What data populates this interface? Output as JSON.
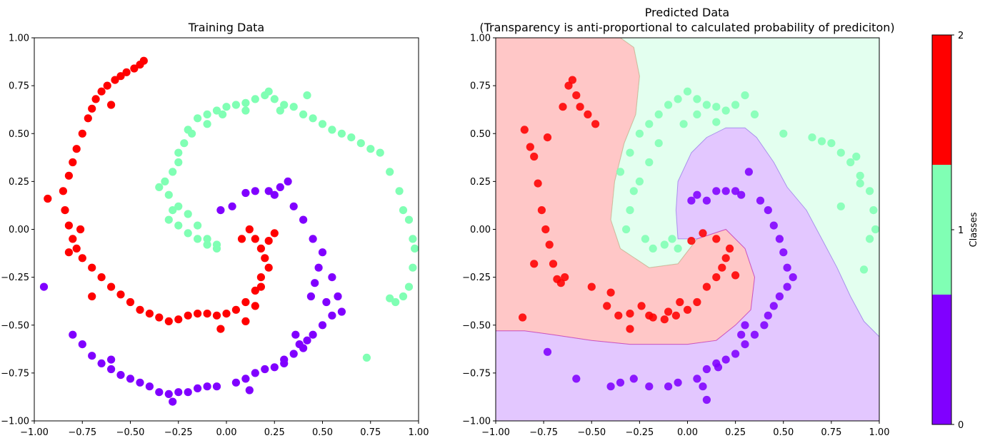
{
  "figure": {
    "left_title": "Training Data",
    "right_title_line1": "Predicted Data",
    "right_title_line2": "(Transparency is anti-proportional to calculated probability of prediciton)",
    "colorbar_label": "Classes",
    "colorbar_ticks": [
      "0",
      "1",
      "2"
    ]
  },
  "colors": {
    "class0": "#8000ff",
    "class1": "#80ffb4",
    "class2": "#ff0000"
  },
  "chart_data": [
    {
      "type": "scatter",
      "title": "Training Data",
      "xlabel": "",
      "ylabel": "",
      "xlim": [
        -1.0,
        1.0
      ],
      "ylim": [
        -1.0,
        1.0
      ],
      "xticks": [
        "−1.00",
        "−0.75",
        "−0.50",
        "−0.25",
        "0.00",
        "0.25",
        "0.50",
        "0.75",
        "1.00"
      ],
      "yticks": [
        "−1.00",
        "−0.75",
        "−0.50",
        "−0.25",
        "0.00",
        "0.25",
        "0.50",
        "0.75",
        "1.00"
      ],
      "grid": false,
      "series": [
        {
          "class": 0,
          "x": [
            0.32,
            0.28,
            0.22,
            0.15,
            0.1,
            0.03,
            -0.03,
            0.25,
            0.35,
            0.4,
            0.45,
            0.5,
            0.55,
            0.58,
            0.6,
            0.55,
            0.5,
            0.45,
            0.42,
            0.4,
            0.35,
            0.3,
            0.25,
            0.2,
            0.15,
            0.1,
            0.05,
            -0.05,
            -0.1,
            -0.15,
            -0.2,
            -0.25,
            -0.3,
            -0.35,
            -0.4,
            -0.45,
            -0.5,
            -0.55,
            -0.6,
            -0.65,
            -0.7,
            -0.75,
            -0.8,
            -0.95,
            0.48,
            0.44,
            0.38,
            0.3,
            0.12,
            -0.28,
            -0.6,
            0.52,
            0.46,
            0.36
          ],
          "y": [
            0.25,
            0.22,
            0.2,
            0.2,
            0.19,
            0.12,
            0.1,
            0.18,
            0.12,
            0.05,
            -0.05,
            -0.12,
            -0.25,
            -0.35,
            -0.43,
            -0.45,
            -0.5,
            -0.55,
            -0.58,
            -0.62,
            -0.65,
            -0.68,
            -0.72,
            -0.73,
            -0.75,
            -0.78,
            -0.8,
            -0.82,
            -0.82,
            -0.83,
            -0.85,
            -0.85,
            -0.86,
            -0.85,
            -0.82,
            -0.8,
            -0.78,
            -0.76,
            -0.73,
            -0.7,
            -0.66,
            -0.6,
            -0.55,
            -0.3,
            -0.2,
            -0.35,
            -0.6,
            -0.7,
            -0.84,
            -0.9,
            -0.68,
            -0.38,
            -0.28,
            -0.55
          ]
        },
        {
          "class": 1,
          "x": [
            -0.35,
            -0.3,
            -0.25,
            -0.2,
            -0.15,
            -0.1,
            -0.05,
            -0.32,
            -0.28,
            -0.25,
            -0.22,
            -0.18,
            -0.28,
            -0.3,
            -0.25,
            -0.2,
            -0.15,
            -0.1,
            -0.05,
            -0.25,
            -0.2,
            -0.15,
            -0.1,
            -0.05,
            0.0,
            0.05,
            0.1,
            0.15,
            0.2,
            0.25,
            0.3,
            0.35,
            0.4,
            0.45,
            0.5,
            0.55,
            0.6,
            0.65,
            0.7,
            0.75,
            0.8,
            0.85,
            0.9,
            0.92,
            0.95,
            0.97,
            0.98,
            0.97,
            0.95,
            0.92,
            0.88,
            0.85,
            0.73,
            -0.1,
            -0.02,
            0.1,
            0.22,
            0.28,
            0.42
          ],
          "y": [
            0.22,
            0.18,
            0.12,
            0.08,
            0.02,
            -0.05,
            -0.08,
            0.25,
            0.3,
            0.4,
            0.45,
            0.5,
            0.1,
            0.05,
            0.02,
            -0.02,
            -0.05,
            -0.08,
            -0.1,
            0.35,
            0.52,
            0.58,
            0.6,
            0.62,
            0.64,
            0.65,
            0.66,
            0.68,
            0.7,
            0.68,
            0.65,
            0.64,
            0.6,
            0.58,
            0.55,
            0.52,
            0.5,
            0.48,
            0.45,
            0.42,
            0.4,
            0.3,
            0.2,
            0.1,
            0.05,
            -0.05,
            -0.1,
            -0.2,
            -0.3,
            -0.35,
            -0.38,
            -0.36,
            -0.67,
            0.55,
            0.6,
            0.62,
            0.72,
            0.62,
            0.7
          ]
        },
        {
          "class": 2,
          "x": [
            0.12,
            0.15,
            0.18,
            0.2,
            0.22,
            0.18,
            0.15,
            0.1,
            0.05,
            0.0,
            -0.05,
            -0.1,
            -0.15,
            -0.2,
            -0.25,
            -0.3,
            -0.35,
            -0.4,
            -0.45,
            -0.5,
            -0.55,
            -0.6,
            -0.65,
            -0.7,
            -0.75,
            -0.78,
            -0.8,
            -0.82,
            -0.84,
            -0.85,
            -0.82,
            -0.8,
            -0.78,
            -0.75,
            -0.72,
            -0.7,
            -0.68,
            -0.65,
            -0.62,
            -0.58,
            -0.55,
            -0.52,
            -0.48,
            -0.45,
            -0.43,
            0.25,
            0.22,
            0.18,
            0.15,
            0.1,
            -0.03,
            -0.7,
            -0.76,
            -0.93,
            0.08,
            -0.6,
            -0.82
          ],
          "y": [
            0.0,
            -0.05,
            -0.1,
            -0.15,
            -0.2,
            -0.25,
            -0.32,
            -0.38,
            -0.42,
            -0.44,
            -0.45,
            -0.44,
            -0.44,
            -0.45,
            -0.47,
            -0.48,
            -0.46,
            -0.44,
            -0.42,
            -0.38,
            -0.34,
            -0.3,
            -0.25,
            -0.2,
            -0.15,
            -0.1,
            -0.05,
            0.02,
            0.1,
            0.2,
            0.28,
            0.35,
            0.42,
            0.5,
            0.58,
            0.63,
            0.68,
            0.72,
            0.75,
            0.78,
            0.8,
            0.82,
            0.84,
            0.86,
            0.88,
            -0.02,
            -0.06,
            -0.3,
            -0.4,
            -0.48,
            -0.52,
            -0.35,
            0.0,
            0.16,
            -0.05,
            0.65,
            -0.12
          ]
        }
      ]
    },
    {
      "type": "scatter",
      "title": "Predicted Data\n(Transparency is anti-proportional to calculated probability of prediciton)",
      "xlabel": "",
      "ylabel": "",
      "xlim": [
        -1.0,
        1.0
      ],
      "ylim": [
        -1.0,
        1.0
      ],
      "xticks": [
        "−1.00",
        "−0.75",
        "−0.50",
        "−0.25",
        "0.00",
        "0.25",
        "0.50",
        "0.75",
        "1.00"
      ],
      "yticks": [
        "−1.00",
        "−0.75",
        "−0.50",
        "−0.25",
        "0.00",
        "0.25",
        "0.50",
        "0.75",
        "1.00"
      ],
      "grid": false,
      "background_regions": [
        {
          "class": 2,
          "polygon": [
            [
              -1.0,
              1.0
            ],
            [
              -0.35,
              1.0
            ],
            [
              -0.28,
              0.95
            ],
            [
              -0.25,
              0.8
            ],
            [
              -0.27,
              0.6
            ],
            [
              -0.33,
              0.45
            ],
            [
              -0.38,
              0.25
            ],
            [
              -0.4,
              0.05
            ],
            [
              -0.35,
              -0.1
            ],
            [
              -0.2,
              -0.2
            ],
            [
              -0.05,
              -0.18
            ],
            [
              0.05,
              -0.05
            ],
            [
              0.2,
              0.0
            ],
            [
              0.3,
              -0.1
            ],
            [
              0.35,
              -0.25
            ],
            [
              0.33,
              -0.42
            ],
            [
              0.25,
              -0.5
            ],
            [
              0.15,
              -0.58
            ],
            [
              0.0,
              -0.6
            ],
            [
              -0.15,
              -0.6
            ],
            [
              -0.3,
              -0.6
            ],
            [
              -0.5,
              -0.58
            ],
            [
              -0.7,
              -0.55
            ],
            [
              -0.85,
              -0.53
            ],
            [
              -1.0,
              -0.53
            ]
          ]
        },
        {
          "class": 1,
          "polygon": [
            [
              -0.35,
              1.0
            ],
            [
              1.0,
              1.0
            ],
            [
              1.0,
              -0.56
            ],
            [
              0.92,
              -0.48
            ],
            [
              0.85,
              -0.35
            ],
            [
              0.78,
              -0.2
            ],
            [
              0.7,
              -0.05
            ],
            [
              0.62,
              0.1
            ],
            [
              0.52,
              0.22
            ],
            [
              0.45,
              0.35
            ],
            [
              0.36,
              0.48
            ],
            [
              0.3,
              0.53
            ],
            [
              0.2,
              0.53
            ],
            [
              0.1,
              0.48
            ],
            [
              0.02,
              0.4
            ],
            [
              -0.05,
              0.25
            ],
            [
              -0.06,
              0.1
            ],
            [
              -0.05,
              -0.05
            ],
            [
              0.05,
              -0.05
            ],
            [
              -0.05,
              -0.18
            ],
            [
              -0.2,
              -0.2
            ],
            [
              -0.35,
              -0.1
            ],
            [
              -0.4,
              0.05
            ],
            [
              -0.38,
              0.25
            ],
            [
              -0.33,
              0.45
            ],
            [
              -0.27,
              0.6
            ],
            [
              -0.25,
              0.8
            ],
            [
              -0.28,
              0.95
            ]
          ]
        },
        {
          "class": 0,
          "polygon": [
            [
              -1.0,
              -0.53
            ],
            [
              -0.85,
              -0.53
            ],
            [
              -0.7,
              -0.55
            ],
            [
              -0.5,
              -0.58
            ],
            [
              -0.3,
              -0.6
            ],
            [
              -0.15,
              -0.6
            ],
            [
              0.0,
              -0.6
            ],
            [
              0.15,
              -0.58
            ],
            [
              0.25,
              -0.5
            ],
            [
              0.33,
              -0.42
            ],
            [
              0.35,
              -0.25
            ],
            [
              0.3,
              -0.1
            ],
            [
              0.2,
              0.0
            ],
            [
              0.05,
              -0.05
            ],
            [
              -0.05,
              -0.05
            ],
            [
              -0.06,
              0.1
            ],
            [
              -0.05,
              0.25
            ],
            [
              0.02,
              0.4
            ],
            [
              0.1,
              0.48
            ],
            [
              0.2,
              0.53
            ],
            [
              0.3,
              0.53
            ],
            [
              0.36,
              0.48
            ],
            [
              0.45,
              0.35
            ],
            [
              0.52,
              0.22
            ],
            [
              0.62,
              0.1
            ],
            [
              0.7,
              -0.05
            ],
            [
              0.78,
              -0.2
            ],
            [
              0.85,
              -0.35
            ],
            [
              0.92,
              -0.48
            ],
            [
              1.0,
              -0.56
            ],
            [
              1.0,
              -1.0
            ],
            [
              -1.0,
              -1.0
            ]
          ]
        }
      ],
      "series": [
        {
          "class": 0,
          "x": [
            0.02,
            0.05,
            0.1,
            0.15,
            0.2,
            0.25,
            0.28,
            0.32,
            0.38,
            0.42,
            0.45,
            0.48,
            0.5,
            0.52,
            0.55,
            0.52,
            0.48,
            0.45,
            0.42,
            0.4,
            0.35,
            0.3,
            0.25,
            0.2,
            0.15,
            0.1,
            0.05,
            -0.05,
            -0.1,
            -0.2,
            -0.28,
            -0.35,
            -0.4,
            -0.58,
            -0.73,
            0.3,
            0.28,
            0.1,
            0.08,
            0.16
          ],
          "y": [
            0.15,
            0.18,
            0.15,
            0.2,
            0.2,
            0.2,
            0.18,
            0.3,
            0.15,
            0.1,
            0.02,
            -0.05,
            -0.12,
            -0.2,
            -0.25,
            -0.3,
            -0.35,
            -0.4,
            -0.45,
            -0.5,
            -0.55,
            -0.6,
            -0.65,
            -0.68,
            -0.7,
            -0.73,
            -0.78,
            -0.8,
            -0.82,
            -0.82,
            -0.78,
            -0.8,
            -0.82,
            -0.78,
            -0.64,
            -0.5,
            -0.55,
            -0.89,
            -0.82,
            -0.72
          ]
        },
        {
          "class": 1,
          "x": [
            -0.35,
            -0.3,
            -0.25,
            -0.2,
            -0.15,
            -0.1,
            -0.05,
            0.0,
            0.05,
            0.1,
            0.15,
            0.2,
            0.25,
            0.3,
            0.35,
            0.5,
            0.65,
            0.7,
            0.75,
            0.8,
            0.85,
            0.9,
            0.95,
            0.97,
            0.98,
            0.95,
            0.92,
            0.88,
            -0.28,
            -0.3,
            -0.32,
            -0.22,
            -0.18,
            -0.12,
            -0.08,
            -0.05,
            -0.25,
            -0.2,
            -0.15,
            0.05,
            0.15,
            0.8,
            0.9,
            -0.02
          ],
          "y": [
            0.3,
            0.4,
            0.5,
            0.55,
            0.6,
            0.65,
            0.68,
            0.72,
            0.68,
            0.65,
            0.64,
            0.62,
            0.65,
            0.7,
            0.6,
            0.5,
            0.48,
            0.46,
            0.45,
            0.4,
            0.35,
            0.28,
            0.2,
            0.1,
            0.0,
            -0.05,
            -0.21,
            0.38,
            0.2,
            0.1,
            0.0,
            -0.05,
            -0.1,
            -0.08,
            -0.05,
            -0.1,
            0.25,
            0.35,
            0.45,
            0.6,
            0.56,
            0.12,
            0.24,
            0.55
          ]
        },
        {
          "class": 2,
          "x": [
            -0.85,
            -0.82,
            -0.8,
            -0.78,
            -0.76,
            -0.74,
            -0.72,
            -0.7,
            -0.68,
            -0.66,
            -0.64,
            -0.62,
            -0.6,
            -0.58,
            -0.56,
            -0.52,
            -0.48,
            -0.42,
            -0.36,
            -0.3,
            -0.24,
            -0.18,
            -0.12,
            -0.06,
            0.0,
            0.05,
            0.1,
            0.15,
            0.18,
            0.2,
            0.22,
            0.25,
            0.15,
            0.08,
            0.02,
            -0.04,
            -0.1,
            -0.2,
            -0.3,
            -0.4,
            -0.5,
            -0.65,
            -0.73,
            -0.8,
            -0.86
          ],
          "y": [
            0.52,
            0.43,
            0.38,
            0.24,
            0.1,
            0.0,
            -0.08,
            -0.18,
            -0.26,
            -0.28,
            -0.25,
            0.75,
            0.78,
            0.7,
            0.64,
            0.6,
            0.55,
            -0.4,
            -0.45,
            -0.44,
            -0.4,
            -0.46,
            -0.47,
            -0.45,
            -0.42,
            -0.38,
            -0.3,
            -0.25,
            -0.2,
            -0.15,
            -0.1,
            -0.24,
            -0.05,
            -0.02,
            -0.06,
            -0.38,
            -0.43,
            -0.45,
            -0.52,
            -0.33,
            -0.3,
            0.64,
            0.48,
            -0.18,
            -0.46
          ]
        }
      ]
    }
  ]
}
